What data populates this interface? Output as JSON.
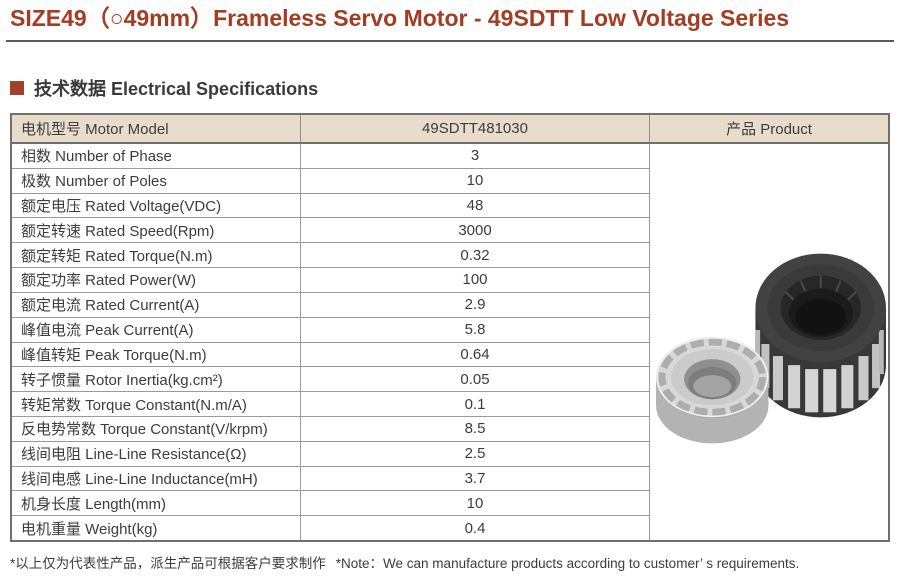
{
  "page": {
    "title": "SIZE49（○49mm）Frameless Servo Motor - 49SDTT Low Voltage Series",
    "section_title": "技术数据 Electrical Specifications",
    "footnote_cn": "*以上仅为代表性产品，派生产品可根据客户要求制作",
    "footnote_en": "*Note：We can manufacture products according to customer’ s requirements."
  },
  "colors": {
    "accent_brown": "#A43C22",
    "section_bullet": "#A04228",
    "table_header_bg": "#E8DCCB",
    "table_border_dark": "#6F6F6F",
    "table_border_light": "#9A9A9A",
    "body_text": "#3D3D3D"
  },
  "table": {
    "headers": [
      "电机型号 Motor Model",
      "49SDTT481030",
      "产品 Product"
    ],
    "rows": [
      {
        "label": "相数 Number of Phase",
        "value": "3"
      },
      {
        "label": "极数 Number of Poles",
        "value": "10"
      },
      {
        "label": "额定电压 Rated Voltage(VDC)",
        "value": "48"
      },
      {
        "label": "额定转速 Rated Speed(Rpm)",
        "value": "3000"
      },
      {
        "label": "额定转矩 Rated Torque(N.m)",
        "value": "0.32"
      },
      {
        "label": "额定功率 Rated Power(W)",
        "value": "100"
      },
      {
        "label": "额定电流 Rated Current(A)",
        "value": "2.9"
      },
      {
        "label": "峰值电流 Peak Current(A)",
        "value": "5.8"
      },
      {
        "label": "峰值转矩 Peak Torque(N.m)",
        "value": "0.64"
      },
      {
        "label": "转子惯量 Rotor Inertia(kg.cm²)",
        "value": "0.05"
      },
      {
        "label": "转矩常数 Torque Constant(N.m/A)",
        "value": "0.1"
      },
      {
        "label": "反电势常数 Torque Constant(V/krpm)",
        "value": "8.5"
      },
      {
        "label": "线间电阻 Line-Line Resistance(Ω)",
        "value": "2.5"
      },
      {
        "label": "线间电感 Line-Line Inductance(mH)",
        "value": "3.7"
      },
      {
        "label": "机身长度 Length(mm)",
        "value": "10"
      },
      {
        "label": "电机重量 Weight(kg)",
        "value": "0.4"
      }
    ],
    "product_image_alt": "Frameless servo motor rotor (silver ring) and stator (black slotted ring)"
  }
}
